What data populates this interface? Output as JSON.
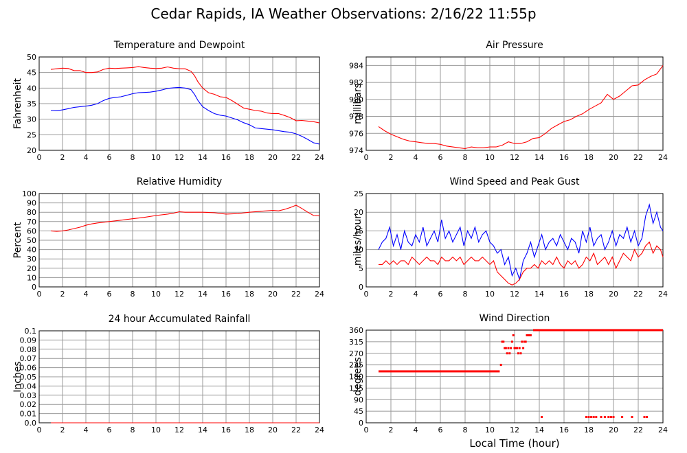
{
  "title": "Cedar Rapids, IA Weather Observations: 2/16/22 11:55p",
  "colors": {
    "red": "#ff0000",
    "blue": "#0000ff",
    "grid": "#999999"
  },
  "chart_data": [
    {
      "id": "temp",
      "type": "line",
      "title": "Temperature and Dewpoint",
      "ylabel": "Fahrenheit",
      "xlabel": "",
      "xlim": [
        0,
        24
      ],
      "ylim": [
        20,
        50
      ],
      "xticks": [
        2,
        4,
        6,
        8,
        10,
        12,
        14,
        16,
        18,
        20,
        22,
        24
      ],
      "yticks": [
        20,
        25,
        30,
        35,
        40,
        45,
        50
      ],
      "grid": true,
      "series": [
        {
          "color": "#ff0000",
          "x": [
            1,
            1.5,
            2,
            2.5,
            3,
            3.5,
            4,
            4.5,
            5,
            5.5,
            6,
            6.5,
            7,
            7.5,
            8,
            8.5,
            9,
            9.5,
            10,
            10.5,
            11,
            11.5,
            12,
            12.5,
            13,
            13.3,
            13.6,
            14,
            14.5,
            15,
            15.5,
            16,
            16.5,
            17,
            17.5,
            18,
            18.5,
            19,
            19.5,
            20,
            20.5,
            21,
            21.5,
            22,
            22.5,
            23,
            23.5,
            24
          ],
          "y": [
            46,
            46.2,
            46.4,
            46.3,
            45.6,
            45.6,
            45.0,
            45.0,
            45.2,
            46.0,
            46.4,
            46.3,
            46.4,
            46.5,
            46.6,
            46.9,
            46.6,
            46.4,
            46.3,
            46.4,
            46.8,
            46.4,
            46.2,
            46.2,
            45.4,
            44.0,
            42.0,
            40.0,
            38.5,
            38.0,
            37.2,
            37.0,
            36.0,
            34.8,
            33.6,
            33.2,
            32.8,
            32.6,
            32.0,
            31.8,
            31.8,
            31.2,
            30.5,
            29.5,
            29.6,
            29.4,
            29.2,
            28.8
          ]
        },
        {
          "color": "#0000ff",
          "x": [
            1,
            1.5,
            2,
            2.5,
            3,
            3.5,
            4,
            4.5,
            5,
            5.5,
            6,
            6.5,
            7,
            7.5,
            8,
            8.5,
            9,
            9.5,
            10,
            10.5,
            11,
            11.5,
            12,
            12.5,
            13,
            13.3,
            13.6,
            14,
            14.5,
            15,
            15.5,
            16,
            16.5,
            17,
            17.5,
            18,
            18.5,
            19,
            19.5,
            20,
            20.5,
            21,
            21.5,
            22,
            22.5,
            23,
            23.5,
            24
          ],
          "y": [
            32.8,
            32.7,
            33.0,
            33.4,
            33.8,
            34.0,
            34.2,
            34.5,
            35.0,
            36.0,
            36.7,
            37.0,
            37.2,
            37.7,
            38.2,
            38.5,
            38.6,
            38.7,
            39.0,
            39.4,
            39.9,
            40.1,
            40.2,
            40.0,
            39.5,
            38.0,
            36.0,
            34.0,
            32.8,
            31.8,
            31.3,
            31.0,
            30.4,
            29.8,
            28.9,
            28.2,
            27.2,
            27.0,
            26.8,
            26.6,
            26.3,
            26.0,
            25.8,
            25.3,
            24.5,
            23.5,
            22.4,
            22.0
          ]
        }
      ]
    },
    {
      "id": "pressure",
      "type": "line",
      "title": "Air Pressure",
      "ylabel": "millibars",
      "xlabel": "",
      "xlim": [
        0,
        24
      ],
      "ylim": [
        974,
        985
      ],
      "xticks": [
        2,
        4,
        6,
        8,
        10,
        12,
        14,
        16,
        18,
        20,
        22,
        24
      ],
      "yticks": [
        974,
        976,
        978,
        980,
        982,
        984
      ],
      "grid": true,
      "series": [
        {
          "color": "#ff0000",
          "x": [
            1,
            1.5,
            2,
            2.5,
            3,
            3.5,
            4,
            4.5,
            5,
            5.5,
            6,
            6.5,
            7,
            7.5,
            8,
            8.5,
            9,
            9.5,
            10,
            10.5,
            11,
            11.5,
            12,
            12.5,
            13,
            13.5,
            14,
            14.5,
            15,
            15.5,
            16,
            16.5,
            17,
            17.5,
            18,
            18.5,
            19,
            19.5,
            20,
            20.5,
            21,
            21.5,
            22,
            22.5,
            23,
            23.5,
            24
          ],
          "y": [
            976.8,
            976.3,
            975.9,
            975.6,
            975.3,
            975.1,
            975.0,
            974.9,
            974.8,
            974.8,
            974.7,
            974.5,
            974.4,
            974.3,
            974.2,
            974.4,
            974.3,
            974.3,
            974.4,
            974.4,
            974.6,
            975.0,
            974.8,
            974.8,
            975.0,
            975.4,
            975.5,
            976.0,
            976.6,
            977.0,
            977.4,
            977.6,
            978.0,
            978.3,
            978.8,
            979.2,
            979.6,
            980.6,
            980.0,
            980.4,
            981.0,
            981.6,
            981.7,
            982.3,
            982.7,
            983.0,
            984.0
          ]
        }
      ]
    },
    {
      "id": "humidity",
      "type": "line",
      "title": "Relative Humidity",
      "ylabel": "Percent",
      "xlabel": "",
      "xlim": [
        0,
        24
      ],
      "ylim": [
        0,
        100
      ],
      "xticks": [
        2,
        4,
        6,
        8,
        10,
        12,
        14,
        16,
        18,
        20,
        22,
        24
      ],
      "yticks": [
        0,
        10,
        20,
        30,
        40,
        50,
        60,
        70,
        80,
        90,
        100
      ],
      "grid": true,
      "series": [
        {
          "color": "#ff0000",
          "x": [
            1,
            1.5,
            2,
            2.5,
            3,
            3.5,
            4,
            4.5,
            5,
            6,
            7,
            8,
            9,
            10,
            11,
            11.5,
            12,
            12.5,
            13,
            14,
            15,
            16,
            17,
            18,
            19,
            20,
            20.5,
            21,
            21.5,
            22,
            22.5,
            23,
            23.5,
            24
          ],
          "y": [
            60,
            59.5,
            60,
            61,
            62.5,
            64,
            66,
            67.5,
            68.5,
            70,
            71.5,
            73,
            74.5,
            76.5,
            78,
            79,
            80.5,
            80,
            80,
            80,
            79.5,
            78,
            78.5,
            80,
            81,
            82,
            81.5,
            83,
            85,
            87.5,
            84,
            80,
            76.5,
            76
          ]
        }
      ]
    },
    {
      "id": "wind",
      "type": "line",
      "title": "Wind Speed and Peak Gust",
      "ylabel": "miles/hour",
      "xlabel": "",
      "xlim": [
        0,
        24
      ],
      "ylim": [
        0,
        25
      ],
      "xticks": [
        2,
        4,
        6,
        8,
        10,
        12,
        14,
        16,
        18,
        20,
        22,
        24
      ],
      "yticks": [
        0,
        5,
        10,
        15,
        20,
        25
      ],
      "grid": true,
      "series": [
        {
          "color": "#0000ff",
          "x": [
            1,
            1.3,
            1.6,
            1.9,
            2.2,
            2.5,
            2.8,
            3.1,
            3.4,
            3.7,
            4,
            4.3,
            4.6,
            4.9,
            5.2,
            5.5,
            5.8,
            6.1,
            6.4,
            6.7,
            7,
            7.3,
            7.6,
            7.9,
            8.2,
            8.5,
            8.8,
            9.1,
            9.4,
            9.7,
            10,
            10.3,
            10.6,
            10.9,
            11.2,
            11.5,
            11.8,
            12.1,
            12.4,
            12.7,
            13,
            13.3,
            13.6,
            13.9,
            14.2,
            14.5,
            14.8,
            15.1,
            15.4,
            15.7,
            16,
            16.3,
            16.6,
            16.9,
            17.2,
            17.5,
            17.8,
            18.1,
            18.4,
            18.7,
            19,
            19.3,
            19.6,
            19.9,
            20.2,
            20.5,
            20.8,
            21.1,
            21.4,
            21.7,
            22,
            22.3,
            22.6,
            22.9,
            23.2,
            23.5,
            23.8,
            24
          ],
          "y": [
            10,
            12,
            13,
            16,
            11,
            14,
            10,
            15,
            12,
            11,
            14,
            12,
            16,
            11,
            13,
            15,
            12,
            18,
            13,
            15,
            12,
            14,
            16,
            11,
            15,
            13,
            16,
            12,
            14,
            15,
            12,
            11,
            9,
            10,
            6,
            8,
            3,
            5,
            2,
            7,
            9,
            12,
            8,
            11,
            14,
            10,
            12,
            13,
            11,
            14,
            12,
            10,
            13,
            12,
            9,
            15,
            12,
            16,
            11,
            13,
            14,
            10,
            12,
            15,
            11,
            14,
            13,
            16,
            12,
            15,
            11,
            13,
            19,
            22,
            17,
            20,
            16,
            15
          ]
        },
        {
          "color": "#ff0000",
          "x": [
            1,
            1.3,
            1.6,
            1.9,
            2.2,
            2.5,
            2.8,
            3.1,
            3.4,
            3.7,
            4,
            4.3,
            4.6,
            4.9,
            5.2,
            5.5,
            5.8,
            6.1,
            6.4,
            6.7,
            7,
            7.3,
            7.6,
            7.9,
            8.2,
            8.5,
            8.8,
            9.1,
            9.4,
            9.7,
            10,
            10.3,
            10.6,
            10.9,
            11.2,
            11.5,
            11.8,
            12.1,
            12.4,
            12.7,
            13,
            13.3,
            13.6,
            13.9,
            14.2,
            14.5,
            14.8,
            15.1,
            15.4,
            15.7,
            16,
            16.3,
            16.6,
            16.9,
            17.2,
            17.5,
            17.8,
            18.1,
            18.4,
            18.7,
            19,
            19.3,
            19.6,
            19.9,
            20.2,
            20.5,
            20.8,
            21.1,
            21.4,
            21.7,
            22,
            22.3,
            22.6,
            22.9,
            23.2,
            23.5,
            23.8,
            24
          ],
          "y": [
            6,
            6,
            7,
            6,
            7,
            6,
            7,
            7,
            6,
            8,
            7,
            6,
            7,
            8,
            7,
            7,
            6,
            8,
            7,
            7,
            8,
            7,
            8,
            6,
            7,
            8,
            7,
            7,
            8,
            7,
            6,
            7,
            4,
            3,
            2,
            1,
            0.5,
            1,
            2,
            4,
            5,
            5,
            6,
            5,
            7,
            6,
            7,
            6,
            8,
            6,
            5,
            7,
            6,
            7,
            5,
            6,
            8,
            7,
            9,
            6,
            7,
            8,
            6,
            8,
            5,
            7,
            9,
            8,
            7,
            10,
            8,
            9,
            11,
            12,
            9,
            11,
            10,
            8
          ]
        }
      ]
    },
    {
      "id": "rain",
      "type": "line",
      "title": "24 hour Accumulated Rainfall",
      "ylabel": "Inches",
      "xlabel": "",
      "xlim": [
        0,
        24
      ],
      "ylim": [
        0,
        0.1
      ],
      "xticks": [
        2,
        4,
        6,
        8,
        10,
        12,
        14,
        16,
        18,
        20,
        22,
        24
      ],
      "yticks": [
        0.0,
        0.01,
        0.02,
        0.03,
        0.04,
        0.05,
        0.06,
        0.07,
        0.08,
        0.09,
        0.1
      ],
      "ytick_labels": [
        "0.0",
        "0.01",
        "0.02",
        "0.03",
        "0.04",
        "0.05",
        "0.06",
        "0.07",
        "0.08",
        "0.09",
        "0.1"
      ],
      "grid": true,
      "series": [
        {
          "color": "#ff0000",
          "x": [
            1,
            24
          ],
          "y": [
            0,
            0
          ]
        }
      ]
    },
    {
      "id": "winddir",
      "type": "scatter",
      "title": "Wind Direction",
      "ylabel": "degrees",
      "xlabel": "Local Time (hour)",
      "xlim": [
        0,
        24
      ],
      "ylim": [
        0,
        360
      ],
      "xticks": [
        2,
        4,
        6,
        8,
        10,
        12,
        14,
        16,
        18,
        20,
        22,
        24
      ],
      "yticks": [
        0,
        45,
        90,
        135,
        180,
        225,
        270,
        315,
        360
      ],
      "grid": true,
      "series": [
        {
          "color": "#ff0000",
          "segments": [
            {
              "x": [
                1.0,
                10.8
              ],
              "y": 200
            },
            {
              "x": [
                13.5,
                24.0
              ],
              "y": 360
            }
          ],
          "points": [
            [
              10.9,
              225
            ],
            [
              11.0,
              315
            ],
            [
              11.1,
              315
            ],
            [
              11.2,
              290
            ],
            [
              11.3,
              290
            ],
            [
              11.4,
              270
            ],
            [
              11.5,
              290
            ],
            [
              11.6,
              270
            ],
            [
              11.7,
              290
            ],
            [
              11.8,
              315
            ],
            [
              11.9,
              340
            ],
            [
              12.0,
              290
            ],
            [
              12.1,
              290
            ],
            [
              12.2,
              290
            ],
            [
              12.3,
              270
            ],
            [
              12.4,
              290
            ],
            [
              12.5,
              270
            ],
            [
              12.6,
              315
            ],
            [
              12.7,
              290
            ],
            [
              12.8,
              315
            ],
            [
              12.9,
              315
            ],
            [
              13.0,
              340
            ],
            [
              13.1,
              340
            ],
            [
              13.2,
              340
            ],
            [
              13.3,
              340
            ],
            [
              14.2,
              22.5
            ],
            [
              17.8,
              22.5
            ],
            [
              18.0,
              22.5
            ],
            [
              18.2,
              22.5
            ],
            [
              18.4,
              22.5
            ],
            [
              18.6,
              22.5
            ],
            [
              19.0,
              22.5
            ],
            [
              19.3,
              22.5
            ],
            [
              19.6,
              22.5
            ],
            [
              19.8,
              22.5
            ],
            [
              20.0,
              22.5
            ],
            [
              20.7,
              22.5
            ],
            [
              21.5,
              22.5
            ],
            [
              22.5,
              22.5
            ],
            [
              22.7,
              22.5
            ]
          ]
        }
      ]
    }
  ]
}
